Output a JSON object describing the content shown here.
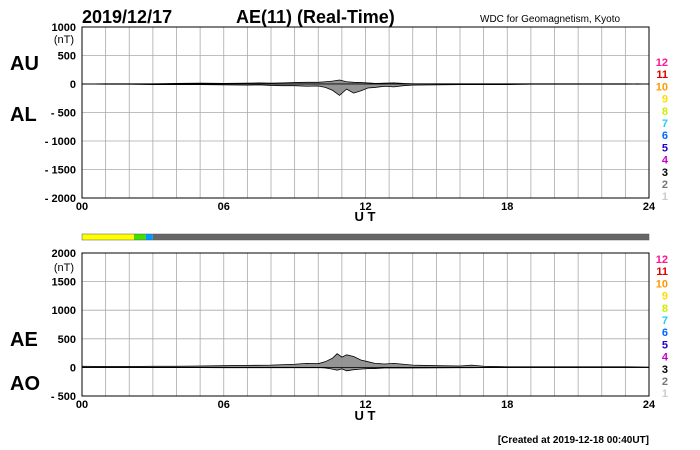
{
  "header": {
    "date": "2019/12/17",
    "title": "AE(11) (Real-Time)",
    "source": "WDC for Geomagnetism, Kyoto"
  },
  "footer": {
    "created": "[Created at 2019-12-18 00:40UT]"
  },
  "legend": {
    "items": [
      {
        "label": "12",
        "color": "#ff1493"
      },
      {
        "label": "11",
        "color": "#dd0000"
      },
      {
        "label": "10",
        "color": "#ff9900"
      },
      {
        "label": "9",
        "color": "#ffdd00"
      },
      {
        "label": "8",
        "color": "#ccee00"
      },
      {
        "label": "7",
        "color": "#22ccee"
      },
      {
        "label": "6",
        "color": "#0066ff"
      },
      {
        "label": "5",
        "color": "#2200cc"
      },
      {
        "label": "4",
        "color": "#cc00cc"
      },
      {
        "label": "3",
        "color": "#000000"
      },
      {
        "label": "2",
        "color": "#777777"
      },
      {
        "label": "1",
        "color": "#cccccc"
      }
    ]
  },
  "coverage_bar": {
    "segments": [
      {
        "x_start": 0,
        "x_end": 2.2,
        "color": "#ffff00"
      },
      {
        "x_start": 2.2,
        "x_end": 2.7,
        "color": "#44dd00"
      },
      {
        "x_start": 2.7,
        "x_end": 3.0,
        "color": "#0099ff"
      },
      {
        "x_start": 3.0,
        "x_end": 24,
        "color": "#666666"
      }
    ]
  },
  "chart_data": [
    {
      "type": "area",
      "upper_label": "AU",
      "lower_label": "AL",
      "unit": "(nT)",
      "xlabel": "U T",
      "xlim": [
        0,
        24
      ],
      "ylim": [
        -2000,
        1000
      ],
      "x_tick_labels": [
        "00",
        "06",
        "12",
        "18",
        "24"
      ],
      "x_ticks": [
        0,
        6,
        12,
        18,
        24
      ],
      "y_tick_labels": [
        "1000",
        "500",
        "0",
        "- 500",
        "- 1000",
        "- 1500",
        "- 2000"
      ],
      "y_ticks": [
        1000,
        500,
        0,
        -500,
        -1000,
        -1500,
        -2000
      ],
      "grid": true,
      "series": [
        {
          "x": [
            0,
            1,
            2,
            3,
            4,
            5,
            6,
            7,
            7.5,
            8,
            8.5,
            9,
            9.5,
            10,
            10.3,
            10.6,
            10.9,
            11.2,
            11.5,
            11.8,
            12.1,
            12.4,
            12.8,
            13.2,
            13.6,
            14,
            15,
            16,
            17,
            18,
            19,
            20,
            21,
            22,
            23,
            24
          ],
          "values": [
            0,
            5,
            5,
            5,
            10,
            15,
            10,
            15,
            20,
            15,
            20,
            25,
            30,
            30,
            40,
            50,
            70,
            40,
            30,
            25,
            20,
            10,
            15,
            20,
            10,
            5,
            5,
            5,
            5,
            5,
            5,
            5,
            5,
            5,
            5,
            0
          ]
        },
        {
          "x": [
            0,
            1,
            2,
            3,
            4,
            5,
            6,
            7,
            7.5,
            8,
            8.5,
            9,
            9.5,
            10,
            10.3,
            10.6,
            10.9,
            11.2,
            11.5,
            11.8,
            12.1,
            12.4,
            12.8,
            13.2,
            13.6,
            14,
            15,
            16,
            17,
            18,
            19,
            20,
            21,
            22,
            23,
            24
          ],
          "values": [
            0,
            -5,
            -5,
            -10,
            -10,
            -10,
            -15,
            -20,
            -15,
            -25,
            -30,
            -30,
            -40,
            -35,
            -60,
            -110,
            -200,
            -90,
            -160,
            -120,
            -70,
            -60,
            -40,
            -50,
            -30,
            -20,
            -15,
            -10,
            -10,
            -10,
            -5,
            -5,
            -5,
            -5,
            -5,
            0
          ]
        }
      ]
    },
    {
      "type": "area",
      "upper_label": "AE",
      "lower_label": "AO",
      "unit": "(nT)",
      "xlabel": "U T",
      "xlim": [
        0,
        24
      ],
      "ylim": [
        -500,
        2000
      ],
      "x_tick_labels": [
        "00",
        "06",
        "12",
        "18",
        "24"
      ],
      "x_ticks": [
        0,
        6,
        12,
        18,
        24
      ],
      "y_tick_labels": [
        "2000",
        "1500",
        "1000",
        "500",
        "0",
        "- 500"
      ],
      "y_ticks": [
        2000,
        1500,
        1000,
        500,
        0,
        -500
      ],
      "grid": true,
      "series": [
        {
          "x": [
            0,
            1,
            2,
            3,
            4,
            5,
            6,
            7,
            8,
            9,
            9.5,
            10,
            10.3,
            10.6,
            10.8,
            11,
            11.2,
            11.5,
            11.8,
            12.1,
            12.4,
            12.8,
            13.2,
            14,
            15,
            16,
            16.5,
            17,
            18,
            19,
            20,
            21,
            22,
            23,
            24
          ],
          "values": [
            20,
            15,
            15,
            20,
            20,
            25,
            30,
            35,
            40,
            55,
            70,
            65,
            100,
            160,
            240,
            180,
            220,
            190,
            130,
            100,
            70,
            60,
            70,
            40,
            30,
            25,
            40,
            20,
            10,
            10,
            10,
            10,
            10,
            10,
            5
          ]
        },
        {
          "x": [
            0,
            1,
            2,
            3,
            4,
            5,
            6,
            7,
            8,
            9,
            9.5,
            10,
            10.3,
            10.6,
            10.8,
            11,
            11.2,
            11.5,
            11.8,
            12.1,
            12.4,
            12.8,
            13.2,
            14,
            15,
            16,
            16.5,
            17,
            18,
            19,
            20,
            21,
            22,
            23,
            24
          ],
          "values": [
            0,
            0,
            0,
            -3,
            -3,
            -3,
            -5,
            -5,
            -5,
            -5,
            -5,
            -3,
            -10,
            -30,
            -50,
            -25,
            -60,
            -40,
            -30,
            -20,
            -20,
            -10,
            -10,
            -10,
            -8,
            -5,
            -5,
            -3,
            0,
            0,
            0,
            0,
            0,
            0,
            0
          ]
        }
      ]
    }
  ]
}
